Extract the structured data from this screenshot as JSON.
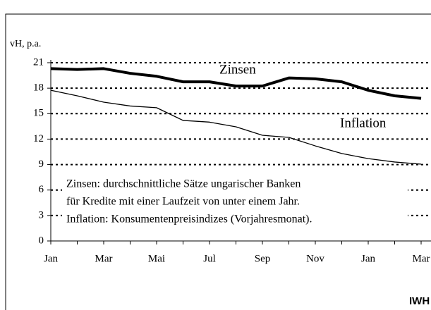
{
  "chart_data": {
    "type": "line",
    "y_axis_label": "vH, p.a.",
    "categories": [
      "Jan",
      null,
      "Mar",
      null,
      "Mai",
      null,
      "Jul",
      null,
      "Sep",
      null,
      "Nov",
      null,
      "Jan",
      null,
      "Mar"
    ],
    "series": [
      {
        "name": "Zinsen",
        "color": "#000000",
        "values": [
          20.3,
          20.2,
          20.3,
          19.75,
          19.4,
          18.75,
          18.75,
          18.25,
          18.25,
          19.2,
          19.1,
          18.75,
          17.75,
          17.1,
          16.8
        ]
      },
      {
        "name": "Inflation",
        "color": "#000000",
        "values": [
          17.75,
          17.1,
          16.35,
          15.9,
          15.7,
          14.2,
          14.0,
          13.45,
          12.45,
          12.2,
          11.2,
          10.3,
          9.7,
          9.3,
          9.05
        ]
      }
    ],
    "ylim": [
      0,
      21
    ],
    "yticks": [
      0,
      3,
      6,
      9,
      12,
      15,
      18,
      21
    ],
    "grid": true,
    "notes": [
      "Zinsen: durchschnittliche Sätze ungarischer Banken",
      "für Kredite mit einer Laufzeit von unter einem Jahr.",
      "Inflation: Konsumentenpreisindizes (Vorjahresmonat)."
    ],
    "source": "IWH"
  }
}
